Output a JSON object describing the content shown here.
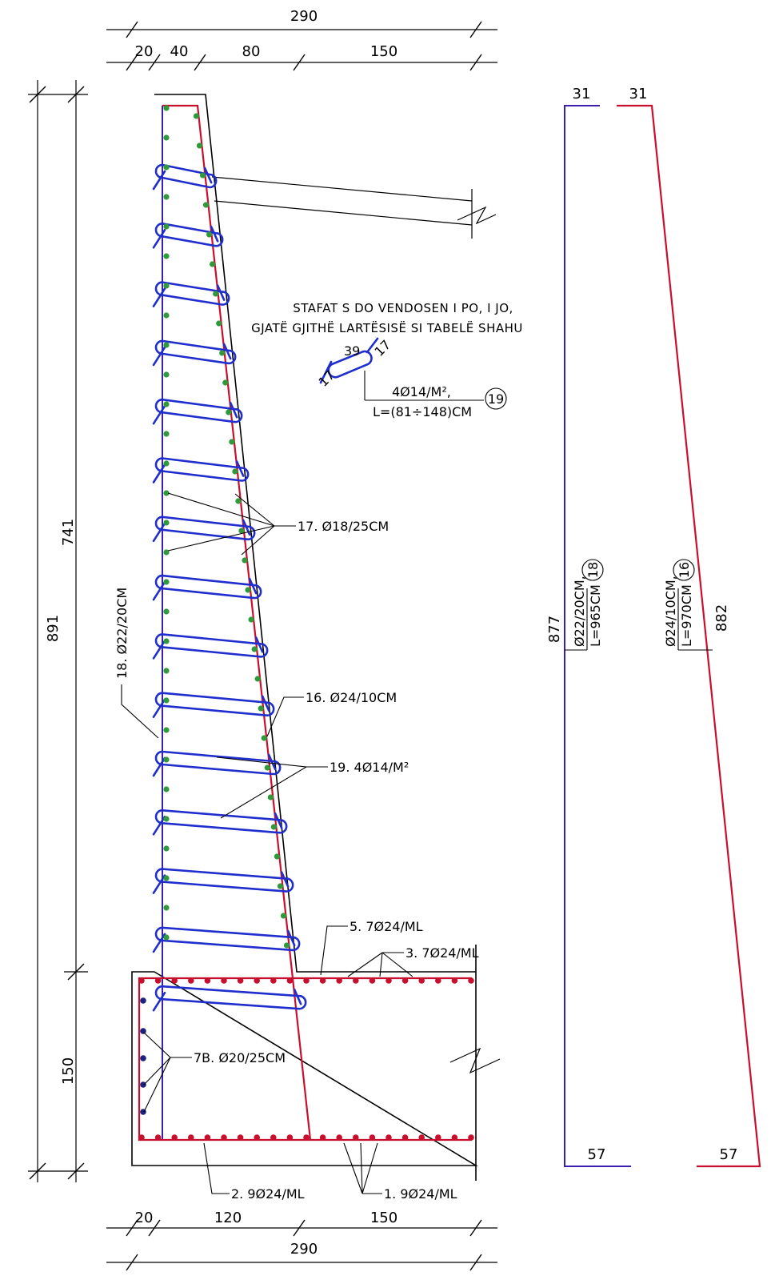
{
  "colors": {
    "main_bar": "#c8102e",
    "inner_bar": "#3a1fb0",
    "stirrup": "#1f2ecc",
    "distribution_bar": "#2f9a3c",
    "footing_dot": "#c8102e",
    "side_dot": "#1a237e"
  },
  "dimensions": {
    "top_total": "290",
    "top_20": "20",
    "top_40": "40",
    "top_80": "80",
    "top_150": "150",
    "left_891": "891",
    "left_741": "741",
    "left_150": "150",
    "bottom_20": "20",
    "bottom_120": "120",
    "bottom_150": "150",
    "bottom_total": "290"
  },
  "labels": {
    "bar_18": "18. Ø22/20CM",
    "bar_17": "17. Ø18/25CM",
    "bar_16": "16. Ø24/10CM",
    "bar_19": "19. 4Ø14/M²",
    "bar_5": "5. 7Ø24/ML",
    "bar_3": "3. 7Ø24/ML",
    "bar_7b": "7B. Ø20/25CM",
    "bar_2": "2. 9Ø24/ML",
    "bar_1": "1. 9Ø24/ML"
  },
  "note": {
    "line1": "STAFAT S DO VENDOSEN I PO, I JO,",
    "line2": "GJATË GJITHË LARTËSISË SI TABELË SHAHU"
  },
  "stirrup_detail": {
    "length": "39",
    "hook_top": "17",
    "hook_bottom": "17",
    "spec": "4Ø14/M²,",
    "length_formula": "L=(81÷148)CM",
    "mark": "19"
  },
  "bar_schedule": {
    "bar18": {
      "top": "31",
      "height": "877",
      "spec": "Ø22/20CM,",
      "length": "L=965CM",
      "mark": "18",
      "bottom": "57"
    },
    "bar16": {
      "top": "31",
      "height": "882",
      "spec": "Ø24/10CM,",
      "length": "L=970CM",
      "mark": "16",
      "bottom": "57"
    }
  }
}
